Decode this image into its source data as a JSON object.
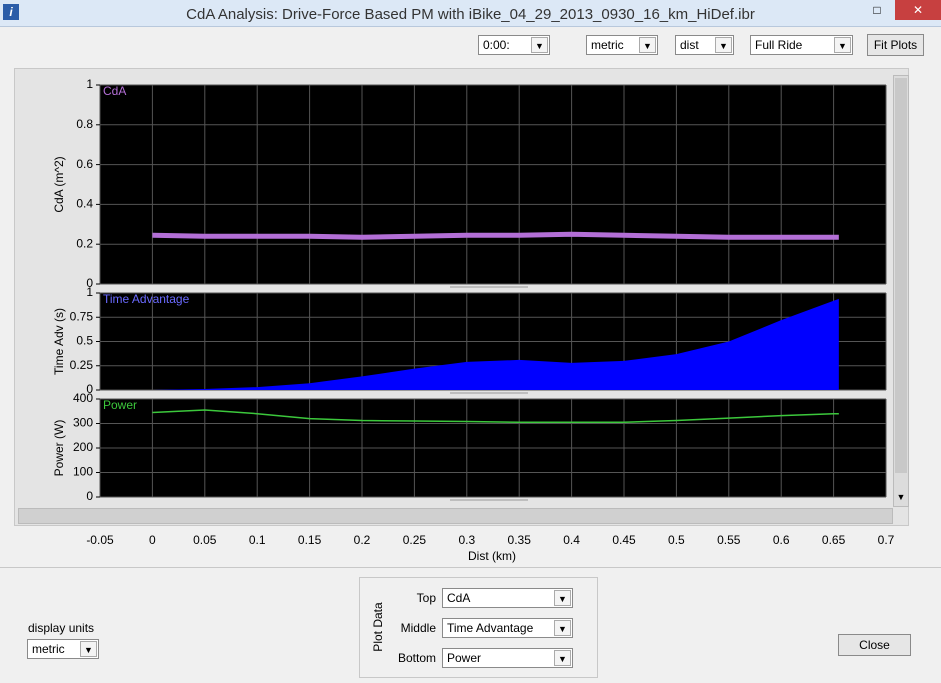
{
  "window": {
    "title": "CdA Analysis:  Drive-Force Based PM with iBike_04_29_2013_0930_16_km_HiDef.ibr"
  },
  "toolbar": {
    "time": "0:00:",
    "units": "metric",
    "axis": "dist",
    "range": "Full Ride",
    "fit_button": "Fit Plots"
  },
  "chart_data": [
    {
      "type": "line",
      "ylabel": "CdA (m^2)",
      "x": [
        0,
        0.05,
        0.1,
        0.15,
        0.2,
        0.25,
        0.3,
        0.35,
        0.4,
        0.45,
        0.5,
        0.55,
        0.6,
        0.65,
        0.655
      ],
      "series": [
        {
          "name": "CdA",
          "color": "#b36fd6",
          "values": [
            0.245,
            0.24,
            0.24,
            0.24,
            0.235,
            0.24,
            0.245,
            0.245,
            0.25,
            0.245,
            0.24,
            0.235,
            0.235,
            0.235,
            0.235
          ]
        }
      ],
      "ylim": [
        0,
        1
      ],
      "yticks": [
        0,
        0.2,
        0.4,
        0.6,
        0.8,
        1
      ],
      "grid": true
    },
    {
      "type": "area",
      "ylabel": "Time Adv (s)",
      "x": [
        0,
        0.05,
        0.1,
        0.15,
        0.2,
        0.25,
        0.3,
        0.35,
        0.4,
        0.45,
        0.5,
        0.55,
        0.6,
        0.65,
        0.655
      ],
      "series": [
        {
          "name": "Time Advantage",
          "color": "#0000ff",
          "values": [
            0,
            0.01,
            0.03,
            0.07,
            0.14,
            0.22,
            0.29,
            0.31,
            0.28,
            0.3,
            0.37,
            0.5,
            0.72,
            0.92,
            0.94
          ]
        }
      ],
      "ylim": [
        0,
        1
      ],
      "yticks": [
        0,
        0.25,
        0.5,
        0.75,
        1
      ],
      "grid": true
    },
    {
      "type": "line",
      "ylabel": "Power (W)",
      "xlabel": "Dist (km)",
      "x": [
        0,
        0.05,
        0.1,
        0.15,
        0.2,
        0.25,
        0.3,
        0.35,
        0.4,
        0.45,
        0.5,
        0.55,
        0.6,
        0.65,
        0.655
      ],
      "series": [
        {
          "name": "Power",
          "color": "#3cc83c",
          "values": [
            345,
            355,
            340,
            320,
            312,
            310,
            308,
            305,
            305,
            305,
            312,
            322,
            332,
            340,
            340
          ]
        }
      ],
      "ylim": [
        0,
        400
      ],
      "yticks": [
        0,
        100,
        200,
        300,
        400
      ],
      "grid": true,
      "xlim": [
        -0.05,
        0.7
      ],
      "xticks": [
        -0.05,
        0,
        0.05,
        0.1,
        0.15,
        0.2,
        0.25,
        0.3,
        0.35,
        0.4,
        0.45,
        0.5,
        0.55,
        0.6,
        0.65,
        0.7
      ]
    }
  ],
  "bottom": {
    "units_label": "display units",
    "units": "metric",
    "group_label": "Plot Data",
    "rows": [
      {
        "label": "Top",
        "value": "CdA"
      },
      {
        "label": "Middle",
        "value": "Time Advantage"
      },
      {
        "label": "Bottom",
        "value": "Power"
      }
    ],
    "close_button": "Close"
  }
}
